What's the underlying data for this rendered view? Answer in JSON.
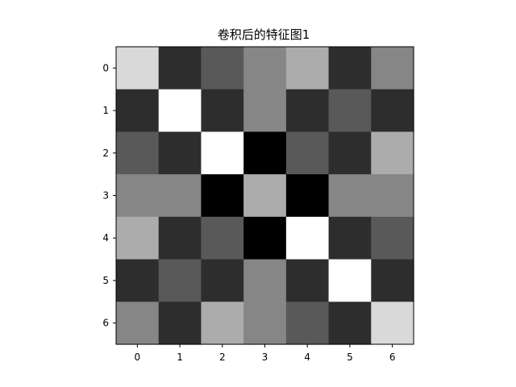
{
  "chart_data": {
    "type": "heatmap",
    "title": "卷积后的特征图1",
    "colormap": "gray",
    "vmin": 0,
    "vmax": 4,
    "x_ticks": [
      "0",
      "1",
      "2",
      "3",
      "4",
      "5",
      "6"
    ],
    "y_ticks": [
      "0",
      "1",
      "2",
      "3",
      "4",
      "5",
      "6"
    ],
    "values": [
      [
        3.4,
        0.7,
        1.4,
        2.1,
        2.7,
        0.7,
        2.1
      ],
      [
        0.7,
        4.0,
        0.7,
        2.1,
        0.7,
        1.4,
        0.7
      ],
      [
        1.4,
        0.7,
        4.0,
        0.0,
        1.4,
        0.7,
        2.7
      ],
      [
        2.1,
        2.1,
        0.0,
        2.7,
        0.0,
        2.1,
        2.1
      ],
      [
        2.7,
        0.7,
        1.4,
        0.0,
        4.0,
        0.7,
        1.4
      ],
      [
        0.7,
        1.4,
        0.7,
        2.1,
        0.7,
        4.0,
        0.7
      ],
      [
        2.1,
        0.7,
        2.7,
        2.1,
        1.4,
        0.7,
        3.4
      ]
    ]
  }
}
